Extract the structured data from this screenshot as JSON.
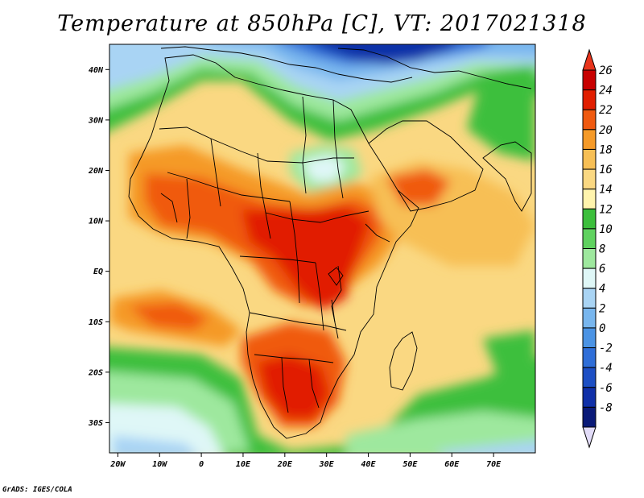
{
  "title": "Temperature at 850hPa [C], VT: 2017021318",
  "credit": "GrADS: IGES/COLA",
  "map": {
    "lon_range": [
      -22,
      80
    ],
    "lat_range": [
      -36,
      45
    ],
    "lon_ticks": [
      {
        "value": -20,
        "label": "20W"
      },
      {
        "value": -10,
        "label": "10W"
      },
      {
        "value": 0,
        "label": "0"
      },
      {
        "value": 10,
        "label": "10E"
      },
      {
        "value": 20,
        "label": "20E"
      },
      {
        "value": 30,
        "label": "30E"
      },
      {
        "value": 40,
        "label": "40E"
      },
      {
        "value": 50,
        "label": "50E"
      },
      {
        "value": 60,
        "label": "60E"
      },
      {
        "value": 70,
        "label": "70E"
      }
    ],
    "lat_ticks": [
      {
        "value": 40,
        "label": "40N"
      },
      {
        "value": 30,
        "label": "30N"
      },
      {
        "value": 20,
        "label": "20N"
      },
      {
        "value": 10,
        "label": "10N"
      },
      {
        "value": 0,
        "label": "EQ"
      },
      {
        "value": -10,
        "label": "10S"
      },
      {
        "value": -20,
        "label": "20S"
      },
      {
        "value": -30,
        "label": "30S"
      }
    ]
  },
  "colorbar": {
    "levels": [
      26,
      24,
      22,
      20,
      18,
      16,
      14,
      12,
      10,
      8,
      6,
      4,
      2,
      0,
      -2,
      -4,
      -6,
      -8
    ],
    "level_labels": [
      "26",
      "24",
      "22",
      "20",
      "18",
      "16",
      "14",
      "12",
      "10",
      "8",
      "6",
      "4",
      "2",
      "0",
      "-2",
      "-4",
      "-6",
      "-8"
    ],
    "colors": [
      "#c80000",
      "#e11e00",
      "#f05a10",
      "#f59a28",
      "#f7bf55",
      "#fad882",
      "#fff4ad",
      "#3cbf3c",
      "#5fd25f",
      "#9ee89e",
      "#dff7f7",
      "#a9d4f4",
      "#78b6ee",
      "#4b93e4",
      "#2f6ed8",
      "#1d4fc4",
      "#1030a8",
      "#0a1a78"
    ],
    "over_color": "#e8341c",
    "under_color": "#e2dcf8"
  }
}
